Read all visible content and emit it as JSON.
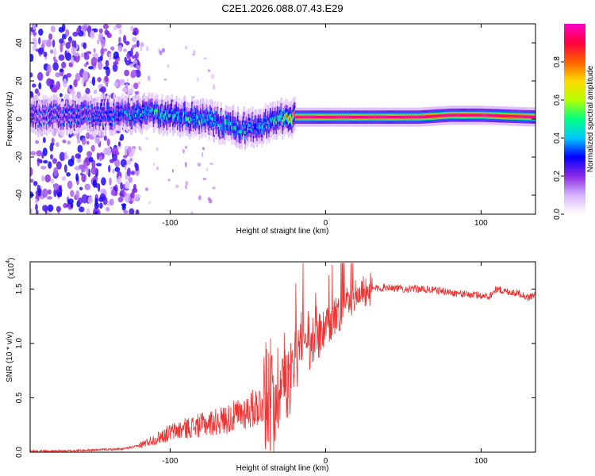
{
  "chart_data": [
    {
      "type": "heatmap",
      "title": "C2E1.2026.088.07.43.E29",
      "xlabel": "Height of straight line (km)",
      "ylabel": "Frequency (Hz)",
      "xlim": [
        -190,
        135
      ],
      "ylim": [
        -50,
        50
      ],
      "xticks": [
        -100,
        0,
        100
      ],
      "yticks": [
        -40,
        -20,
        0,
        20,
        40
      ],
      "colorbar": {
        "label": "Normalized spectral amplitude",
        "range": [
          0,
          1
        ],
        "ticks": [
          "0.0",
          "0.2",
          "0.4",
          "0.6",
          "0.8"
        ],
        "colors": [
          "#ffffff",
          "#d7b3ff",
          "#8a2be2",
          "#0000ff",
          "#00c8ff",
          "#00ff80",
          "#b4ff00",
          "#ffd700",
          "#ff6000",
          "#ff0040",
          "#ff00c8"
        ]
      },
      "ridge": {
        "x": [
          -190,
          -160,
          -140,
          -120,
          -100,
          -80,
          -60,
          -50,
          -40,
          -30,
          -20,
          0,
          20,
          40,
          60,
          80,
          100,
          135
        ],
        "freq": [
          2,
          2,
          2,
          3,
          2,
          0,
          -4,
          -5,
          -3,
          0,
          1,
          1,
          1,
          1,
          1,
          2,
          2,
          1
        ],
        "peak_amplitude": [
          0.25,
          0.3,
          0.35,
          0.45,
          0.55,
          0.5,
          0.5,
          0.45,
          0.5,
          0.6,
          0.95,
          0.95,
          0.95,
          0.95,
          0.95,
          0.95,
          0.95,
          0.95
        ]
      }
    },
    {
      "type": "line",
      "title": "",
      "xlabel": "Height of straight line (km)",
      "ylabel": "SNR (10 * v/v)",
      "scale_label": "(x10",
      "scale_exp": "4",
      "xlim": [
        -190,
        135
      ],
      "ylim": [
        0,
        1.75
      ],
      "xticks": [
        -100,
        0,
        100
      ],
      "yticks": [
        "0.0",
        "0.5",
        "1.0",
        "1.5"
      ],
      "color": "#ee3333",
      "series": [
        {
          "name": "SNR",
          "x": [
            -190,
            -170,
            -150,
            -130,
            -120,
            -110,
            -100,
            -90,
            -80,
            -70,
            -60,
            -50,
            -40,
            -35,
            -30,
            -25,
            -20,
            -15,
            -10,
            -5,
            0,
            5,
            10,
            15,
            20,
            25,
            30,
            40,
            50,
            60,
            70,
            80,
            90,
            100,
            105,
            110,
            115,
            120,
            125,
            130,
            135
          ],
          "y": [
            0.01,
            0.01,
            0.02,
            0.03,
            0.06,
            0.12,
            0.18,
            0.22,
            0.25,
            0.28,
            0.32,
            0.38,
            0.45,
            0.52,
            0.6,
            0.72,
            0.85,
            0.92,
            0.98,
            1.05,
            1.1,
            1.2,
            1.3,
            1.38,
            1.44,
            1.48,
            1.5,
            1.52,
            1.5,
            1.5,
            1.49,
            1.47,
            1.45,
            1.44,
            1.43,
            1.5,
            1.48,
            1.47,
            1.46,
            1.42,
            1.45
          ]
        }
      ]
    }
  ]
}
